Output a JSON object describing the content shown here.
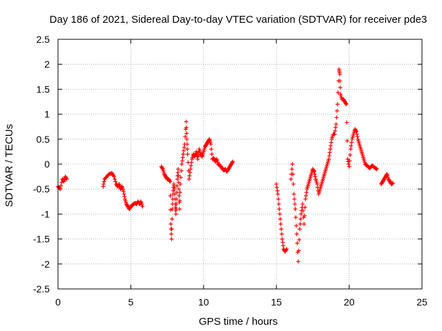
{
  "chart_data": {
    "type": "scatter",
    "title": "Day 186 of 2021, Sidereal Day-to-day VTEC variation (SDTVAR) for receiver pde3",
    "xlabel": "GPS time / hours",
    "ylabel": "SDTVAR / TECUs",
    "xlim": [
      0,
      25
    ],
    "ylim": [
      -2.5,
      2.5
    ],
    "xticks": [
      "0",
      "5",
      "10",
      "15",
      "20",
      "25"
    ],
    "yticks": [
      "-2.5",
      "-2",
      "-1.5",
      "-1",
      "-0.5",
      "0",
      "0.5",
      "1",
      "1.5",
      "2",
      "2.5"
    ],
    "grid": true,
    "marker": "+",
    "series": [
      {
        "name": "SDTVAR",
        "color": "#ff0000",
        "x": [
          0.0,
          0.15,
          0.3,
          0.4,
          0.5,
          0.6,
          3.1,
          3.2,
          3.35,
          3.5,
          3.7,
          3.85,
          4.0,
          4.1,
          4.2,
          4.3,
          4.4,
          4.5,
          4.6,
          4.7,
          4.8,
          4.9,
          5.0,
          5.1,
          5.2,
          5.3,
          5.4,
          5.5,
          5.6,
          5.7,
          5.8,
          7.1,
          7.2,
          7.3,
          7.4,
          7.5,
          7.6,
          7.7,
          7.75,
          7.8,
          7.85,
          7.9,
          7.95,
          8.0,
          8.05,
          8.1,
          8.15,
          8.2,
          8.25,
          8.3,
          8.35,
          8.4,
          8.5,
          8.6,
          8.7,
          8.8,
          8.85,
          8.9,
          9.0,
          9.1,
          9.2,
          9.3,
          9.4,
          9.5,
          9.6,
          9.7,
          9.8,
          9.9,
          10.0,
          10.1,
          10.2,
          10.3,
          10.4,
          10.5,
          10.6,
          10.7,
          10.8,
          10.9,
          11.0,
          11.1,
          11.2,
          11.3,
          11.4,
          11.5,
          11.6,
          11.7,
          11.8,
          11.9,
          12.0,
          15.0,
          15.1,
          15.2,
          15.3,
          15.4,
          15.5,
          15.6,
          15.7,
          16.0,
          16.1,
          16.2,
          16.3,
          16.4,
          16.5,
          16.6,
          16.7,
          16.8,
          16.9,
          17.0,
          17.1,
          17.2,
          17.3,
          17.4,
          17.5,
          17.6,
          17.7,
          17.8,
          17.9,
          18.0,
          18.1,
          18.2,
          18.3,
          18.4,
          18.5,
          18.6,
          18.7,
          18.8,
          18.9,
          19.0,
          19.1,
          19.2,
          19.3,
          19.35,
          19.4,
          19.5,
          19.6,
          19.7,
          19.8,
          19.9,
          20.0,
          20.1,
          20.2,
          20.3,
          20.4,
          20.5,
          20.6,
          20.7,
          20.8,
          20.9,
          21.0,
          21.1,
          21.2,
          21.3,
          21.4,
          21.5,
          21.6,
          21.7,
          21.8,
          21.9,
          22.2,
          22.3,
          22.4,
          22.5,
          22.6,
          22.7,
          22.8,
          22.9,
          23.0
        ],
        "y": [
          -0.45,
          -0.5,
          -0.3,
          -0.35,
          -0.25,
          -0.3,
          -0.45,
          -0.3,
          -0.25,
          -0.2,
          -0.18,
          -0.25,
          -0.4,
          -0.45,
          -0.4,
          -0.5,
          -0.45,
          -0.55,
          -0.7,
          -0.8,
          -0.85,
          -0.9,
          -0.85,
          -0.82,
          -0.8,
          -0.78,
          -0.8,
          -0.75,
          -0.8,
          -0.75,
          -0.85,
          -0.05,
          -0.1,
          -0.2,
          -0.25,
          -0.3,
          -0.3,
          -0.35,
          -1.2,
          -1.5,
          -0.9,
          -0.6,
          -0.4,
          -0.5,
          -0.8,
          -1.0,
          -0.7,
          -0.3,
          -0.1,
          -0.5,
          -0.9,
          -0.4,
          0.0,
          0.2,
          0.4,
          0.85,
          0.5,
          0.2,
          -0.3,
          -0.1,
          0.1,
          0.2,
          0.15,
          0.25,
          0.1,
          0.3,
          0.2,
          0.15,
          0.25,
          0.35,
          0.4,
          0.45,
          0.5,
          0.4,
          0.1,
          0.12,
          0.05,
          0.1,
          0.0,
          -0.02,
          -0.05,
          -0.1,
          -0.12,
          -0.1,
          -0.15,
          -0.1,
          -0.05,
          0.0,
          0.05,
          -0.4,
          -0.6,
          -0.9,
          -1.2,
          -1.5,
          -1.7,
          -1.75,
          -1.7,
          -0.3,
          0.0,
          -0.6,
          -0.9,
          -1.4,
          -1.95,
          -1.3,
          -1.0,
          -0.8,
          -1.2,
          -0.7,
          -0.5,
          -0.4,
          -0.3,
          -0.2,
          -0.1,
          -0.15,
          -0.3,
          -0.4,
          -0.6,
          -0.5,
          -0.4,
          -0.3,
          -0.2,
          -0.1,
          0.0,
          0.1,
          0.3,
          0.5,
          0.6,
          0.6,
          0.8,
          1.2,
          1.9,
          1.8,
          1.4,
          1.3,
          1.3,
          1.25,
          1.2,
          0.1,
          -0.05,
          0.3,
          0.5,
          0.6,
          0.7,
          0.65,
          0.5,
          0.4,
          0.3,
          0.2,
          0.1,
          0.0,
          -0.02,
          -0.05,
          -0.08,
          -0.05,
          -0.03,
          -0.06,
          -0.08,
          -0.1,
          -0.4,
          -0.35,
          -0.3,
          -0.25,
          -0.2,
          -0.3,
          -0.35,
          -0.4,
          -0.38
        ]
      }
    ]
  }
}
